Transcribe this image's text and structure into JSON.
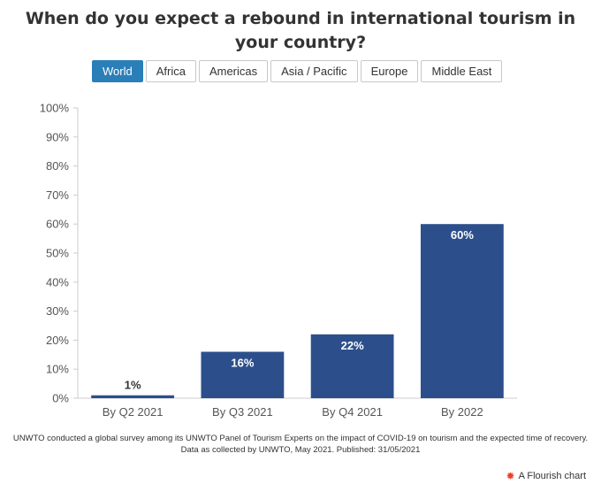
{
  "title": "When do you expect a rebound in international tourism in your country?",
  "tabs": [
    "World",
    "Africa",
    "Americas",
    "Asia / Pacific",
    "Europe",
    "Middle East"
  ],
  "active_tab": "World",
  "colors": {
    "bar": "#2c4f8c",
    "active_tab": "#2b7fb8",
    "grid": "#dddddd",
    "text": "#333333"
  },
  "chart_data": {
    "type": "bar",
    "categories": [
      "By Q2 2021",
      "By Q3 2021",
      "By Q4 2021",
      "By 2022"
    ],
    "values": [
      1,
      16,
      22,
      60
    ],
    "data_labels": [
      "1%",
      "16%",
      "22%",
      "60%"
    ],
    "ylim": [
      0,
      100
    ],
    "yticks": [
      "0%",
      "10%",
      "20%",
      "30%",
      "40%",
      "50%",
      "60%",
      "70%",
      "80%",
      "90%",
      "100%"
    ],
    "xlabel": "",
    "ylabel": "",
    "grid": false
  },
  "footnote": {
    "line1": "UNWTO conducted a global survey among its UNWTO Panel of Tourism Experts on the impact of COVID-19 on tourism and the expected time of recovery.",
    "line2": "Data as collected by UNWTO, May 2021. Published: 31/05/2021"
  },
  "credit": {
    "icon": "flourish-icon",
    "label": "A Flourish chart"
  }
}
